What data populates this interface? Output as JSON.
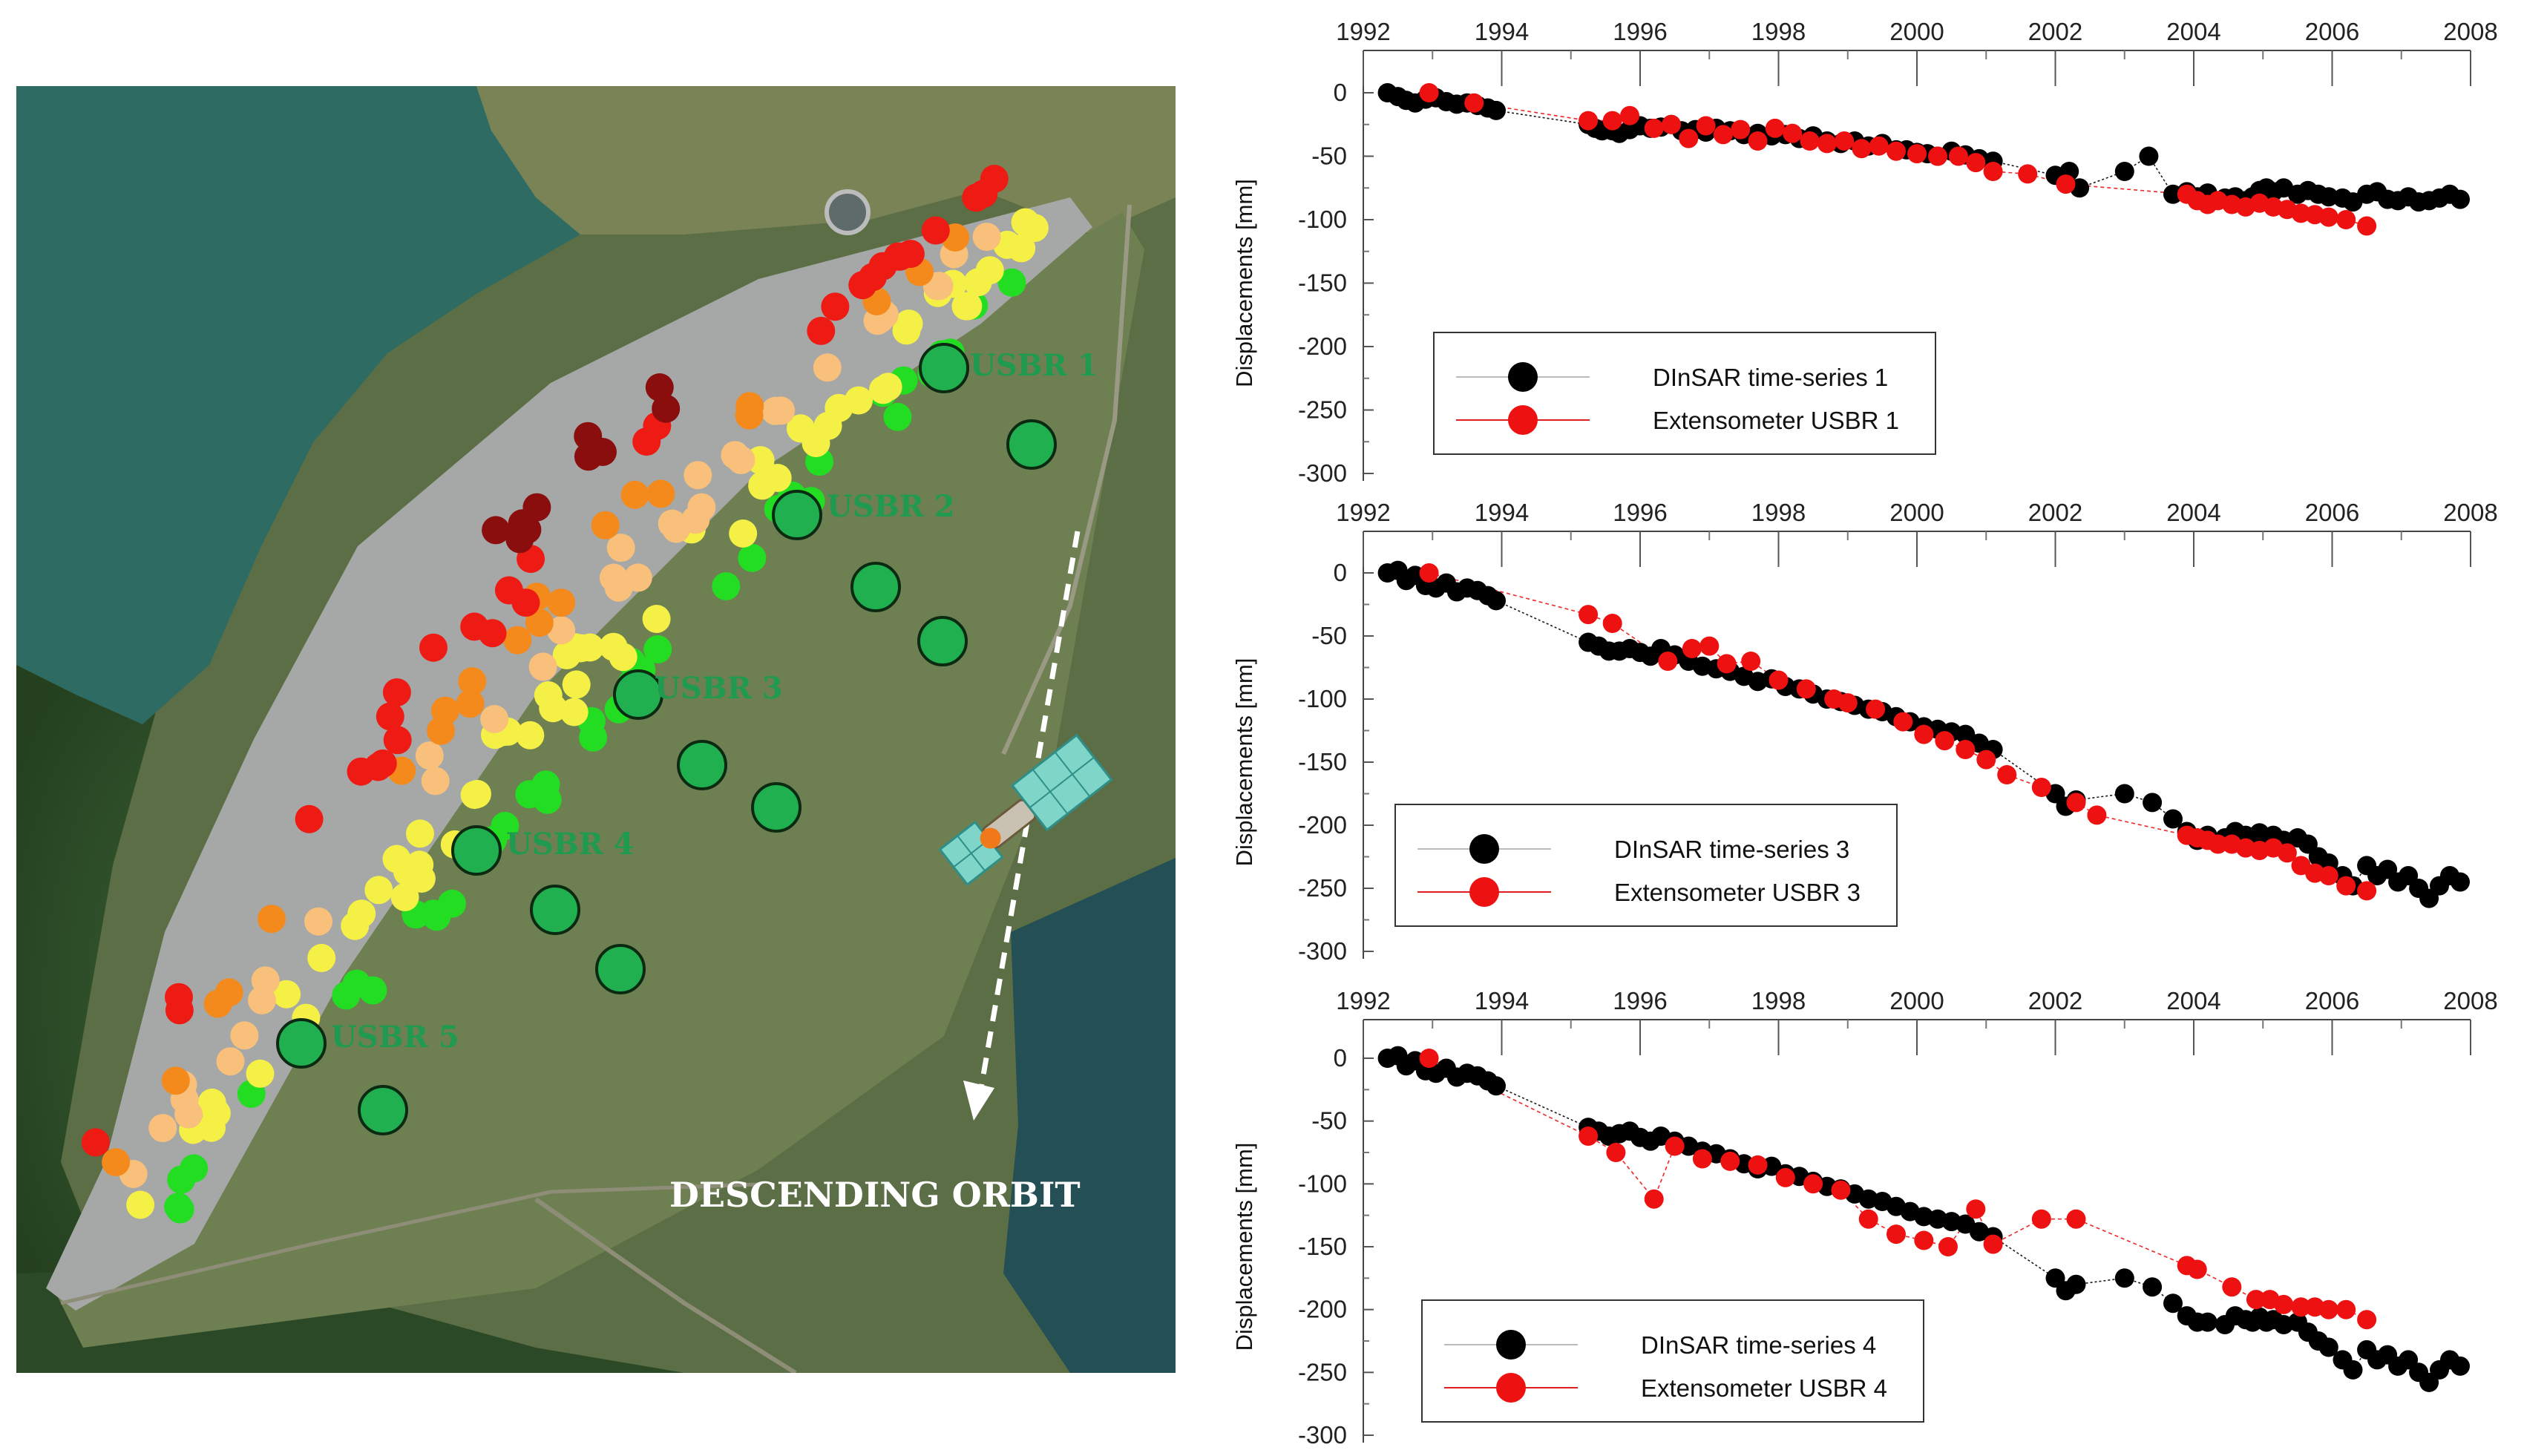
{
  "map": {
    "stations": [
      "USBR 1",
      "USBR 2",
      "USBR 3",
      "USBR 4",
      "USBR 5"
    ],
    "orbit_label": "DESCENDING ORBIT",
    "colors": {
      "water": "#2e6b63",
      "forest": "#30502f",
      "dam_face": "#a6a8a8",
      "embankment": "#6e7f52",
      "station_fill": "#20b050",
      "station_label": "#1f9a4e",
      "ps_green": "#22dd22",
      "ps_yellow": "#f4f046",
      "ps_lightorange": "#f8c07a",
      "ps_orange": "#f48a1c",
      "ps_red": "#ee1b14",
      "ps_darkred": "#8a0e0e"
    }
  },
  "chart_data": [
    {
      "type": "scatter",
      "x_axis_ticks": [
        "1992",
        "1994",
        "1996",
        "1998",
        "2000",
        "2002",
        "2004",
        "2006",
        "2008"
      ],
      "xlim": [
        1992,
        2008
      ],
      "ylabel": "Displacements [mm]",
      "y_ticks": [
        "0",
        "-50",
        "-100",
        "-150",
        "-200",
        "-250",
        "-300"
      ],
      "ylim": [
        -300,
        0
      ],
      "legend": {
        "entries": [
          "DInSAR time-series 1",
          "Extensometer USBR 1"
        ],
        "location": "lower-left"
      },
      "series": [
        {
          "name": "DInSAR time-series 1",
          "color": "#000000",
          "x": [
            1992.35,
            1992.5,
            1992.62,
            1992.75,
            1992.9,
            1993.05,
            1993.2,
            1993.35,
            1993.5,
            1993.65,
            1993.8,
            1993.92,
            1995.25,
            1995.35,
            1995.45,
            1995.6,
            1995.7,
            1995.85,
            1996.0,
            1996.15,
            1996.3,
            1996.45,
            1996.6,
            1996.8,
            1996.95,
            1997.1,
            1997.3,
            1997.5,
            1997.7,
            1997.9,
            1998.1,
            1998.3,
            1998.5,
            1998.7,
            1998.9,
            1999.1,
            1999.3,
            1999.5,
            1999.7,
            1999.85,
            2000.0,
            2000.15,
            2000.3,
            2000.5,
            2000.7,
            2000.9,
            2001.1,
            2002.0,
            2002.2,
            2002.35,
            2003.0,
            2003.35,
            2003.7,
            2003.9,
            2004.05,
            2004.2,
            2004.45,
            2004.6,
            2004.75,
            2004.85,
            2004.95,
            2005.05,
            2005.15,
            2005.3,
            2005.5,
            2005.65,
            2005.8,
            2005.95,
            2006.15,
            2006.3,
            2006.5,
            2006.65,
            2006.8,
            2006.95,
            2007.1,
            2007.25,
            2007.4,
            2007.55,
            2007.7,
            2007.85
          ],
          "y": [
            0,
            -3,
            -6,
            -8,
            -5,
            -4,
            -7,
            -9,
            -8,
            -10,
            -12,
            -14,
            -25,
            -28,
            -30,
            -30,
            -32,
            -29,
            -26,
            -28,
            -27,
            -25,
            -30,
            -29,
            -31,
            -28,
            -30,
            -33,
            -32,
            -34,
            -33,
            -36,
            -34,
            -38,
            -40,
            -38,
            -42,
            -40,
            -45,
            -45,
            -47,
            -48,
            -50,
            -46,
            -49,
            -52,
            -54,
            -65,
            -62,
            -75,
            -62,
            -50,
            -80,
            -78,
            -82,
            -79,
            -83,
            -82,
            -85,
            -82,
            -77,
            -75,
            -78,
            -75,
            -80,
            -77,
            -80,
            -82,
            -83,
            -86,
            -80,
            -78,
            -84,
            -85,
            -82,
            -86,
            -85,
            -83,
            -80,
            -84
          ]
        },
        {
          "name": "Extensometer USBR 1",
          "color": "#ee1111",
          "x": [
            1992.95,
            1993.6,
            1995.25,
            1995.6,
            1995.85,
            1996.2,
            1996.45,
            1996.7,
            1996.95,
            1997.2,
            1997.45,
            1997.7,
            1997.95,
            1998.2,
            1998.45,
            1998.7,
            1998.95,
            1999.2,
            1999.45,
            1999.7,
            2000.0,
            2000.3,
            2000.6,
            2000.85,
            2001.1,
            2001.6,
            2002.15,
            2003.9,
            2004.05,
            2004.2,
            2004.35,
            2004.55,
            2004.75,
            2004.95,
            2005.15,
            2005.35,
            2005.55,
            2005.75,
            2005.95,
            2006.2,
            2006.5
          ],
          "y": [
            0,
            -8,
            -22,
            -22,
            -18,
            -28,
            -25,
            -36,
            -26,
            -33,
            -29,
            -38,
            -28,
            -32,
            -38,
            -40,
            -38,
            -44,
            -42,
            -46,
            -48,
            -50,
            -50,
            -55,
            -62,
            -64,
            -72,
            -80,
            -85,
            -88,
            -85,
            -88,
            -90,
            -87,
            -90,
            -92,
            -95,
            -96,
            -98,
            -100,
            -105
          ]
        }
      ]
    },
    {
      "type": "scatter",
      "x_axis_ticks": [
        "1992",
        "1994",
        "1996",
        "1998",
        "2000",
        "2002",
        "2004",
        "2006",
        "2008"
      ],
      "xlim": [
        1992,
        2008
      ],
      "ylabel": "Displacements [mm]",
      "y_ticks": [
        "0",
        "-50",
        "-100",
        "-150",
        "-200",
        "-250",
        "-300"
      ],
      "ylim": [
        -300,
        0
      ],
      "legend": {
        "entries": [
          "DInSAR time-series 3",
          "Extensometer USBR 3"
        ],
        "location": "lower-left"
      },
      "series": [
        {
          "name": "DInSAR time-series 3",
          "color": "#000000",
          "x": [
            1992.35,
            1992.5,
            1992.62,
            1992.75,
            1992.9,
            1993.05,
            1993.2,
            1993.35,
            1993.5,
            1993.65,
            1993.8,
            1993.92,
            1995.25,
            1995.4,
            1995.55,
            1995.7,
            1995.85,
            1996.0,
            1996.15,
            1996.3,
            1996.5,
            1996.7,
            1996.9,
            1997.1,
            1997.3,
            1997.5,
            1997.7,
            1997.9,
            1998.1,
            1998.3,
            1998.5,
            1998.7,
            1998.9,
            1999.1,
            1999.3,
            1999.5,
            1999.7,
            1999.9,
            2000.1,
            2000.3,
            2000.5,
            2000.7,
            2000.9,
            2001.1,
            2002.0,
            2002.15,
            2002.3,
            2003.0,
            2003.4,
            2003.7,
            2003.9,
            2004.05,
            2004.2,
            2004.45,
            2004.6,
            2004.75,
            2004.85,
            2004.95,
            2005.05,
            2005.15,
            2005.3,
            2005.5,
            2005.65,
            2005.8,
            2005.95,
            2006.15,
            2006.3,
            2006.5,
            2006.65,
            2006.8,
            2006.95,
            2007.1,
            2007.25,
            2007.4,
            2007.55,
            2007.7,
            2007.85
          ],
          "y": [
            0,
            2,
            -6,
            -2,
            -10,
            -12,
            -8,
            -15,
            -12,
            -14,
            -18,
            -22,
            -55,
            -58,
            -62,
            -62,
            -60,
            -63,
            -66,
            -60,
            -65,
            -70,
            -74,
            -76,
            -78,
            -82,
            -86,
            -84,
            -90,
            -92,
            -96,
            -100,
            -102,
            -105,
            -108,
            -110,
            -114,
            -118,
            -122,
            -124,
            -126,
            -128,
            -135,
            -140,
            -175,
            -185,
            -180,
            -175,
            -182,
            -195,
            -205,
            -212,
            -208,
            -210,
            -205,
            -208,
            -210,
            -206,
            -210,
            -208,
            -212,
            -210,
            -215,
            -225,
            -230,
            -240,
            -248,
            -232,
            -240,
            -235,
            -245,
            -240,
            -250,
            -258,
            -248,
            -240,
            -245
          ]
        },
        {
          "name": "Extensometer USBR 3",
          "color": "#ee1111",
          "x": [
            1992.95,
            1995.25,
            1995.6,
            1996.4,
            1996.75,
            1997.0,
            1997.25,
            1997.6,
            1998.0,
            1998.4,
            1998.8,
            1999.0,
            1999.4,
            1999.8,
            2000.1,
            2000.4,
            2000.7,
            2001.0,
            2001.3,
            2001.8,
            2002.3,
            2002.6,
            2003.9,
            2004.05,
            2004.2,
            2004.35,
            2004.55,
            2004.75,
            2004.95,
            2005.15,
            2005.35,
            2005.55,
            2005.75,
            2005.95,
            2006.2,
            2006.5
          ],
          "y": [
            0,
            -33,
            -40,
            -70,
            -60,
            -58,
            -72,
            -70,
            -85,
            -92,
            -100,
            -103,
            -108,
            -118,
            -128,
            -133,
            -140,
            -148,
            -160,
            -170,
            -182,
            -192,
            -208,
            -210,
            -212,
            -215,
            -215,
            -218,
            -220,
            -218,
            -222,
            -232,
            -238,
            -240,
            -248,
            -252
          ]
        }
      ]
    },
    {
      "type": "scatter",
      "x_axis_ticks": [
        "1992",
        "1994",
        "1996",
        "1998",
        "2000",
        "2002",
        "2004",
        "2006",
        "2008"
      ],
      "xlim": [
        1992,
        2008
      ],
      "ylabel": "Displacements [mm]",
      "y_ticks": [
        "0",
        "-50",
        "-100",
        "-150",
        "-200",
        "-250",
        "-300"
      ],
      "ylim": [
        -300,
        0
      ],
      "legend": {
        "entries": [
          "DInSAR time-series 4",
          "Extensometer USBR 4"
        ],
        "location": "lower-left"
      },
      "series": [
        {
          "name": "DInSAR time-series 4",
          "color": "#000000",
          "x": [
            1992.35,
            1992.5,
            1992.62,
            1992.75,
            1992.9,
            1993.05,
            1993.2,
            1993.35,
            1993.5,
            1993.65,
            1993.8,
            1993.92,
            1995.25,
            1995.4,
            1995.55,
            1995.7,
            1995.85,
            1996.0,
            1996.15,
            1996.3,
            1996.5,
            1996.7,
            1996.9,
            1997.1,
            1997.3,
            1997.5,
            1997.7,
            1997.9,
            1998.1,
            1998.3,
            1998.5,
            1998.7,
            1998.9,
            1999.1,
            1999.3,
            1999.5,
            1999.7,
            1999.9,
            2000.1,
            2000.3,
            2000.5,
            2000.7,
            2000.9,
            2001.1,
            2002.0,
            2002.15,
            2002.3,
            2003.0,
            2003.4,
            2003.7,
            2003.9,
            2004.05,
            2004.2,
            2004.45,
            2004.6,
            2004.75,
            2004.85,
            2004.95,
            2005.05,
            2005.15,
            2005.3,
            2005.5,
            2005.65,
            2005.8,
            2005.95,
            2006.15,
            2006.3,
            2006.5,
            2006.65,
            2006.8,
            2006.95,
            2007.1,
            2007.25,
            2007.4,
            2007.55,
            2007.7,
            2007.85
          ],
          "y": [
            0,
            2,
            -6,
            -2,
            -10,
            -12,
            -8,
            -15,
            -12,
            -14,
            -18,
            -22,
            -55,
            -58,
            -62,
            -60,
            -58,
            -63,
            -66,
            -62,
            -66,
            -70,
            -74,
            -76,
            -80,
            -84,
            -88,
            -86,
            -92,
            -94,
            -98,
            -102,
            -104,
            -108,
            -112,
            -114,
            -118,
            -122,
            -126,
            -128,
            -130,
            -132,
            -138,
            -142,
            -175,
            -185,
            -180,
            -175,
            -182,
            -195,
            -205,
            -210,
            -210,
            -212,
            -205,
            -208,
            -210,
            -206,
            -210,
            -208,
            -212,
            -210,
            -218,
            -225,
            -230,
            -240,
            -248,
            -232,
            -240,
            -236,
            -245,
            -240,
            -250,
            -258,
            -248,
            -240,
            -245
          ]
        },
        {
          "name": "Extensometer USBR 4",
          "color": "#ee1111",
          "x": [
            1992.95,
            1995.25,
            1995.65,
            1996.2,
            1996.5,
            1996.9,
            1997.3,
            1997.7,
            1998.1,
            1998.5,
            1998.9,
            1999.3,
            1999.7,
            2000.1,
            2000.45,
            2000.85,
            2001.1,
            2001.8,
            2002.3,
            2003.9,
            2004.05,
            2004.55,
            2004.9,
            2005.1,
            2005.3,
            2005.55,
            2005.75,
            2005.95,
            2006.2,
            2006.5
          ],
          "y": [
            0,
            -62,
            -75,
            -112,
            -70,
            -80,
            -82,
            -85,
            -95,
            -100,
            -105,
            -128,
            -140,
            -145,
            -150,
            -120,
            -148,
            -128,
            -128,
            -165,
            -168,
            -182,
            -192,
            -192,
            -196,
            -198,
            -198,
            -200,
            -200,
            -208
          ]
        }
      ]
    }
  ]
}
